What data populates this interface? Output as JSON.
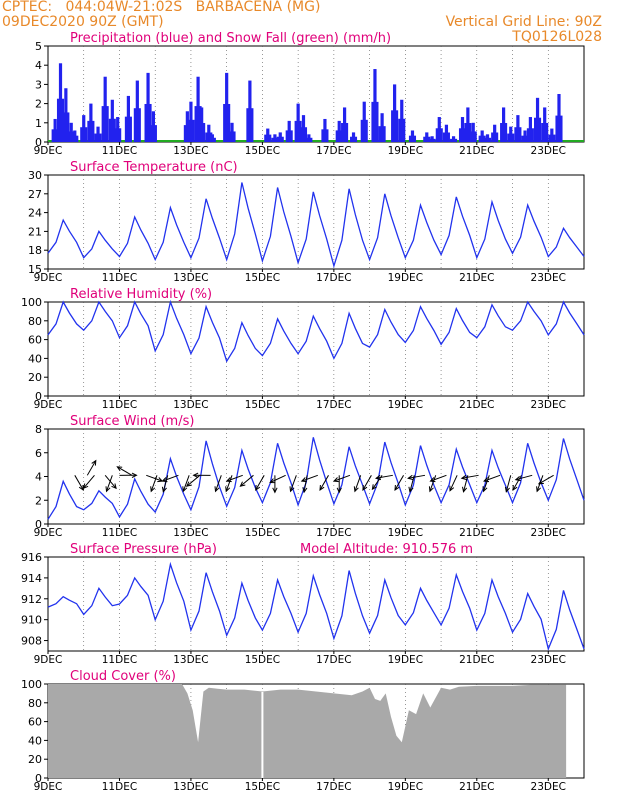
{
  "header": {
    "line1": "CPTEC:   044:04W-21:02S   BARBACENA (MG)",
    "line2": "09DEC2020 90Z (GMT)",
    "grid_note": "Vertical Grid Line: 90Z",
    "code": "TQ0126L028"
  },
  "colors": {
    "header": "#e8892a",
    "title": "#e0007a",
    "line": "#2233ee",
    "precip": "#2222ee",
    "snow": "#22aa22",
    "cloud": "#a9a9a9",
    "grid": "#555555"
  },
  "chart_data": [
    {
      "type": "bar",
      "title": "Precipitation (blue) and Snow Fall (green) (mm/h)",
      "x_labels": [
        "9DEC",
        "11DEC",
        "13DEC",
        "15DEC",
        "17DEC",
        "19DEC",
        "21DEC",
        "23DEC"
      ],
      "ylim": [
        0,
        5
      ],
      "yticks": [
        "0",
        "1",
        "2",
        "3",
        "4",
        "5"
      ],
      "grid": "vertical dashed daily at 90Z",
      "series": [
        {
          "name": "precipitation",
          "color": "#2222ee",
          "x": [
            0.4,
            0.7,
            1.0,
            1.3,
            1.5,
            2.0,
            2.4,
            2.8,
            3.2,
            3.6,
            3.9,
            4.5,
            5.0,
            5.6,
            5.9,
            7.8,
            8.0,
            8.4,
            8.6,
            9.0,
            9.2,
            10.0,
            10.3,
            11.3,
            12.3,
            12.7,
            13.0,
            13.5,
            14.0,
            14.3,
            14.6,
            15.5,
            16.3,
            16.6,
            17.1,
            17.7,
            18.3,
            18.7,
            19.4,
            19.8,
            20.4,
            21.2,
            21.5,
            21.9,
            22.3,
            22.7,
            23.2,
            23.5,
            23.8,
            24.3,
            24.6,
            25.0,
            25.5,
            25.9,
            26.3,
            26.7,
            27.0,
            27.4,
            27.8,
            28.2,
            28.6
          ],
          "values": [
            1.2,
            4.1,
            2.8,
            1.0,
            0.6,
            1.4,
            2.0,
            0.8,
            3.4,
            2.2,
            1.3,
            2.4,
            3.2,
            3.6,
            1.6,
            1.6,
            2.1,
            3.4,
            1.8,
            0.9,
            0.4,
            3.6,
            1.0,
            3.2,
            0.7,
            0.4,
            0.5,
            1.1,
            2.0,
            1.4,
            0.4,
            1.2,
            1.1,
            1.8,
            0.5,
            2.1,
            3.8,
            1.5,
            3.0,
            2.2,
            0.6,
            0.5,
            0.3,
            1.3,
            0.9,
            0.3,
            1.3,
            1.8,
            1.0,
            0.6,
            0.4,
            0.9,
            1.8,
            0.8,
            1.4,
            0.6,
            1.3,
            2.3,
            1.8,
            0.7,
            2.5
          ]
        },
        {
          "name": "snow fall",
          "color": "#22aa22",
          "values": [
            0
          ]
        }
      ]
    },
    {
      "type": "line",
      "title": "Surface Temperature (nC)",
      "x_labels": [
        "9DEC",
        "11DEC",
        "13DEC",
        "15DEC",
        "17DEC",
        "19DEC",
        "21DEC",
        "23DEC"
      ],
      "ylim": [
        15,
        30
      ],
      "yticks": [
        "15",
        "18",
        "21",
        "24",
        "27",
        "30"
      ],
      "daily_min": [
        17.5,
        16.8,
        17.0,
        16.5,
        16.8,
        16.5,
        16.3,
        16.0,
        15.5,
        16.5,
        16.8,
        17.3,
        16.8,
        17.5,
        17.0
      ],
      "daily_max": [
        22.8,
        21.0,
        23.3,
        24.8,
        26.2,
        28.8,
        28.0,
        27.3,
        27.8,
        27.0,
        25.2,
        26.5,
        25.7,
        25.2,
        21.5
      ]
    },
    {
      "type": "line",
      "title": "Relative Humidity (%)",
      "x_labels": [
        "9DEC",
        "11DEC",
        "13DEC",
        "15DEC",
        "17DEC",
        "19DEC",
        "21DEC",
        "23DEC"
      ],
      "ylim": [
        0,
        100
      ],
      "yticks": [
        "0",
        "20",
        "40",
        "60",
        "80",
        "100"
      ],
      "daily_min": [
        65,
        70,
        62,
        48,
        45,
        37,
        43,
        45,
        40,
        52,
        57,
        55,
        62,
        70,
        65
      ],
      "daily_max": [
        100,
        100,
        100,
        100,
        95,
        78,
        82,
        85,
        88,
        92,
        95,
        93,
        97,
        100,
        100
      ]
    },
    {
      "type": "line",
      "title": "Surface Wind (m/s)",
      "x_labels": [
        "9DEC",
        "11DEC",
        "13DEC",
        "15DEC",
        "17DEC",
        "19DEC",
        "21DEC",
        "23DEC"
      ],
      "ylim": [
        0,
        8
      ],
      "yticks": [
        "0",
        "2",
        "4",
        "6",
        "8"
      ],
      "daily_min": [
        0.4,
        1.2,
        0.6,
        1.0,
        1.2,
        1.5,
        1.8,
        1.6,
        1.7,
        1.7,
        1.6,
        1.8,
        1.8,
        1.8,
        2.0
      ],
      "daily_max": [
        3.6,
        2.8,
        3.8,
        5.5,
        7.0,
        6.2,
        6.8,
        7.3,
        6.5,
        6.9,
        6.6,
        6.3,
        6.2,
        6.8,
        7.2
      ],
      "arrows": {
        "x": [
          1.5,
          2.2,
          2.6,
          3.2,
          3.6,
          4.0,
          4.7,
          5.5,
          6.1,
          6.7,
          7.3,
          7.9,
          8.5,
          9.1,
          9.7,
          10.3,
          10.9,
          11.5,
          12.1,
          12.7,
          13.3,
          13.9,
          14.5,
          15.1,
          15.7,
          16.3,
          16.9,
          17.5,
          18.1,
          18.7,
          19.3,
          19.9,
          20.5,
          21.1,
          21.7,
          22.3,
          22.9,
          23.5,
          24.1,
          24.7,
          25.3,
          25.9,
          26.5,
          27.1,
          27.7,
          28.3
        ],
        "dir_deg": [
          150,
          30,
          220,
          140,
          200,
          90,
          300,
          110,
          200,
          195,
          250,
          200,
          230,
          270,
          200,
          200,
          250,
          230,
          210,
          180,
          245,
          200,
          190,
          250,
          210,
          180,
          250,
          200,
          210,
          215,
          260,
          210,
          195,
          260,
          200,
          250,
          205,
          195,
          260,
          200,
          250,
          195,
          210,
          255,
          200,
          240
        ]
      }
    },
    {
      "type": "line",
      "title": "Surface Pressure (hPa)",
      "annotation": "Model Altitude: 910.576 m",
      "x_labels": [
        "9DEC",
        "11DEC",
        "13DEC",
        "15DEC",
        "17DEC",
        "19DEC",
        "21DEC",
        "23DEC"
      ],
      "ylim": [
        907,
        916
      ],
      "yticks": [
        "908",
        "910",
        "912",
        "914",
        "916"
      ],
      "daily_min": [
        911.2,
        910.5,
        911.5,
        910.0,
        909.0,
        908.5,
        909.0,
        908.8,
        908.2,
        908.7,
        909.5,
        909.5,
        909.0,
        908.8,
        907.2
      ],
      "daily_max": [
        912.2,
        913.0,
        914.0,
        915.3,
        914.5,
        913.5,
        913.8,
        914.2,
        914.7,
        913.8,
        913.0,
        914.3,
        913.8,
        912.5,
        912.8
      ]
    },
    {
      "type": "bar",
      "title": "Cloud Cover (%)",
      "x_labels": [
        "9DEC",
        "11DEC",
        "13DEC",
        "15DEC",
        "17DEC",
        "19DEC",
        "21DEC",
        "23DEC"
      ],
      "ylim": [
        0,
        100
      ],
      "yticks": [
        "0",
        "20",
        "40",
        "60",
        "80",
        "100"
      ],
      "x": [
        0,
        7.5,
        7.8,
        8.1,
        8.4,
        8.7,
        9.0,
        9.5,
        10.0,
        11.0,
        12.0,
        13.0,
        14.0,
        15.0,
        16.0,
        17.0,
        17.6,
        18.0,
        18.3,
        18.6,
        18.9,
        19.2,
        19.5,
        19.8,
        20.2,
        20.6,
        21.0,
        21.4,
        22.0,
        22.5,
        23.0,
        24.0,
        25.0,
        26.0,
        27.0,
        28.0,
        29.0
      ],
      "values": [
        100,
        100,
        90,
        72,
        38,
        92,
        96,
        95,
        94,
        94,
        92,
        94,
        94,
        92,
        90,
        88,
        92,
        96,
        84,
        82,
        90,
        65,
        45,
        38,
        72,
        68,
        90,
        75,
        96,
        94,
        97,
        98,
        98,
        98,
        99,
        99,
        99
      ],
      "gaps_at_x": [
        12.0
      ]
    }
  ]
}
